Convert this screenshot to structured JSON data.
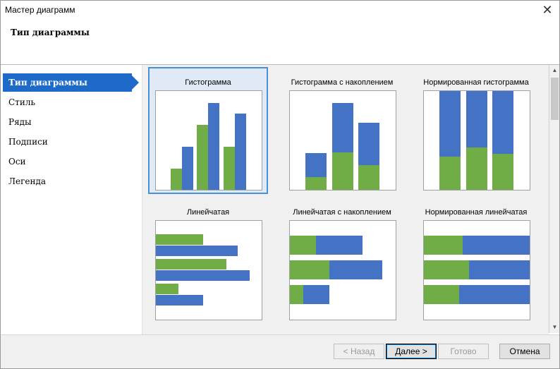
{
  "window": {
    "title": "Мастер диаграмм",
    "close_glyph": "✕",
    "heading": "Тип диаграммы"
  },
  "sidebar": {
    "items": [
      {
        "label": "Тип диаграммы",
        "active": true
      },
      {
        "label": "Стиль"
      },
      {
        "label": "Ряды"
      },
      {
        "label": "Подписи"
      },
      {
        "label": "Оси"
      },
      {
        "label": "Легенда"
      }
    ]
  },
  "chart_types": [
    {
      "label": "Гистограмма",
      "selected": true
    },
    {
      "label": "Гистограмма с накоплением"
    },
    {
      "label": "Нормированная гистограмма"
    },
    {
      "label": "Линейчатая"
    },
    {
      "label": "Линейчатая с накоплением"
    },
    {
      "label": "Нормированная линейчатая"
    }
  ],
  "colors": {
    "series_green": "#70ad47",
    "series_blue": "#4472c4",
    "accent": "#1e6ac8"
  },
  "scrollbar": {
    "up_icon": "▲",
    "down_icon": "▼"
  },
  "footer": {
    "back_label": "< Назад",
    "next_label": "Далее >",
    "finish_label": "Готово",
    "cancel_label": "Отмена"
  }
}
